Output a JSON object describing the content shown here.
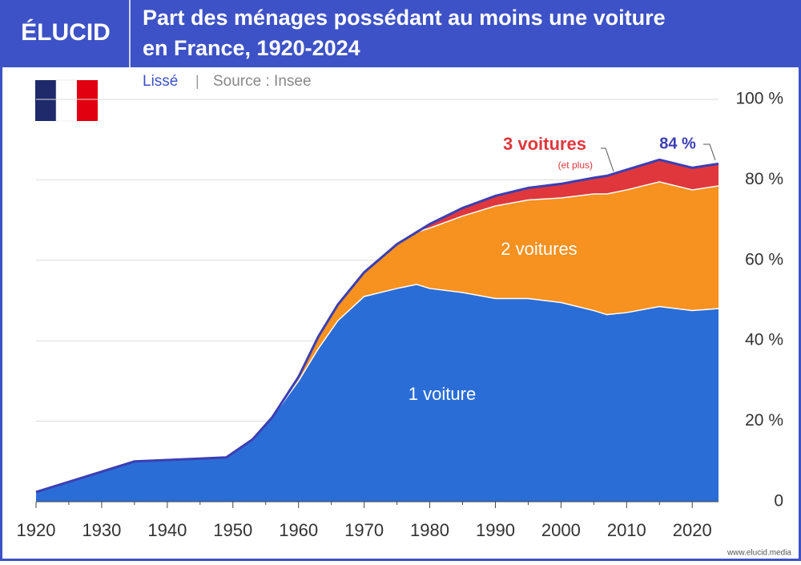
{
  "chart_data": {
    "type": "stacked-area",
    "logo": "ÉLUCID",
    "title": [
      "Part des ménages possédant au moins une voiture",
      "en France, 1920-2024"
    ],
    "subtitle": "Lissé",
    "source": "Source : Insee",
    "footer": "www.elucid.media",
    "x": [
      1920,
      1935,
      1949,
      1953,
      1956,
      1960,
      1963,
      1966,
      1970,
      1975,
      1978,
      1980,
      1985,
      1990,
      1995,
      2000,
      2005,
      2007,
      2010,
      2015,
      2020,
      2024
    ],
    "series": [
      {
        "name": "1 voiture",
        "color": "#2b6dd6",
        "values": [
          2.4,
          10,
          11,
          15.5,
          21,
          30,
          38,
          45,
          51,
          53,
          54,
          53,
          52,
          50.5,
          50.5,
          49.5,
          47.5,
          46.5,
          47,
          48.5,
          47.5,
          48
        ]
      },
      {
        "name": "2 voitures",
        "color": "#f7911f",
        "values": [
          0,
          0,
          0,
          0,
          0,
          1,
          3,
          4,
          6,
          11,
          13,
          15,
          19,
          23,
          24.5,
          26,
          29,
          30,
          30.5,
          31,
          30,
          30.5
        ]
      },
      {
        "name": "3 voitures",
        "color": "#e0373c",
        "values": [
          0,
          0,
          0,
          0,
          0,
          0,
          0,
          0,
          0,
          0,
          0,
          1,
          2,
          2.5,
          3,
          3.5,
          4,
          4.5,
          5,
          5.5,
          5.5,
          5.5
        ]
      }
    ],
    "annotations": [
      "(et plus)",
      "84 %"
    ],
    "outline_color": "#3b3fb3",
    "xlim": [
      1920,
      2024
    ],
    "xticks": [
      1920,
      1930,
      1940,
      1950,
      1960,
      1970,
      1980,
      1990,
      2000,
      2010,
      2020
    ],
    "ylim": [
      0,
      100
    ],
    "yticks": [
      0,
      {
        "value": 20,
        "label": "20 %"
      },
      {
        "value": 40,
        "label": "40 %"
      },
      {
        "value": 60,
        "label": "60 %"
      },
      {
        "value": 80,
        "label": "80 %"
      },
      {
        "value": 100,
        "label": "100 %"
      }
    ],
    "grid": true
  }
}
